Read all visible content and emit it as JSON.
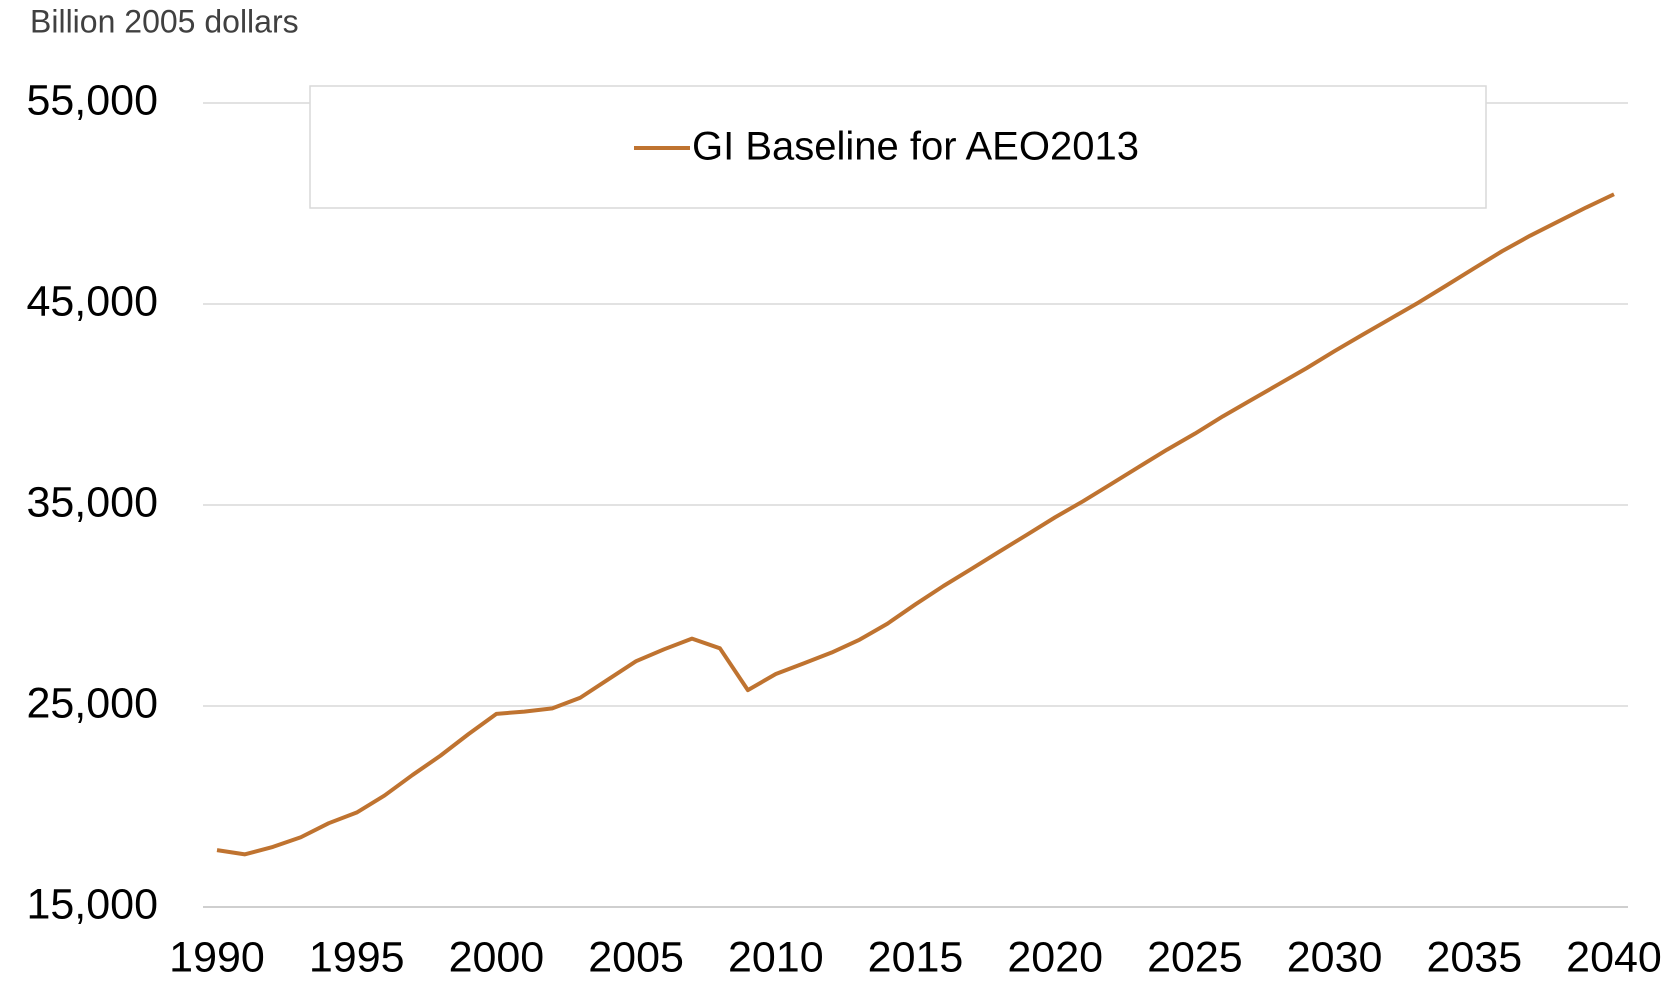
{
  "chart_data": {
    "type": "line",
    "y_axis_label": "Billion 2005 dollars",
    "x": [
      1990,
      1991,
      1992,
      1993,
      1994,
      1995,
      1996,
      1997,
      1998,
      1999,
      2000,
      2001,
      2002,
      2003,
      2004,
      2005,
      2006,
      2007,
      2008,
      2009,
      2010,
      2011,
      2012,
      2013,
      2014,
      2015,
      2016,
      2017,
      2018,
      2019,
      2020,
      2021,
      2022,
      2023,
      2024,
      2025,
      2026,
      2027,
      2028,
      2029,
      2030,
      2031,
      2032,
      2033,
      2034,
      2035,
      2036,
      2037,
      2038,
      2039,
      2040
    ],
    "series": [
      {
        "name": "GI Baseline for AEO2013",
        "color": "#bf7330",
        "values": [
          17830,
          17620,
          17990,
          18470,
          19170,
          19700,
          20550,
          21570,
          22530,
          23600,
          24610,
          24720,
          24880,
          25410,
          26320,
          27230,
          27820,
          28350,
          27870,
          25790,
          26590,
          27120,
          27660,
          28300,
          29100,
          30060,
          30970,
          31820,
          32680,
          33530,
          34390,
          35190,
          36040,
          36900,
          37750,
          38550,
          39410,
          40210,
          41010,
          41810,
          42660,
          43470,
          44270,
          45070,
          45920,
          46780,
          47630,
          48400,
          49100,
          49800,
          50460
        ]
      }
    ],
    "xlim": [
      1990,
      2040
    ],
    "xticks": [
      1990,
      1995,
      2000,
      2005,
      2010,
      2015,
      2020,
      2025,
      2030,
      2035,
      2040
    ],
    "ylim": [
      15000,
      55000
    ],
    "yticks": [
      {
        "value": 15000,
        "label": "15,000"
      },
      {
        "value": 25000,
        "label": "25,000"
      },
      {
        "value": 35000,
        "label": "35,000"
      },
      {
        "value": 45000,
        "label": "45,000"
      },
      {
        "value": 55000,
        "label": "55,000"
      }
    ],
    "grid": true,
    "legend": "top"
  }
}
